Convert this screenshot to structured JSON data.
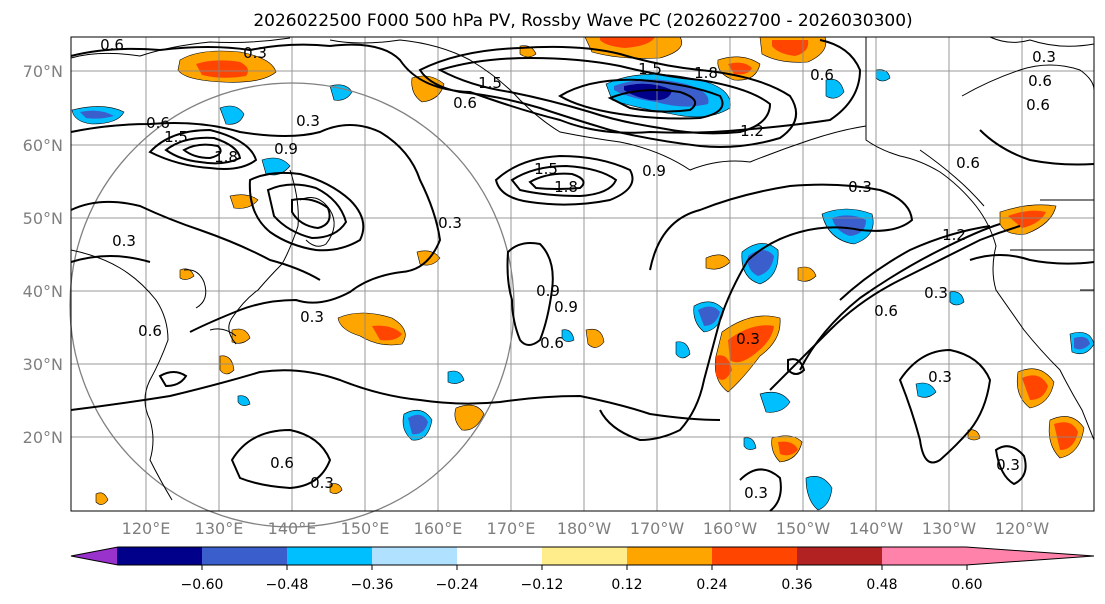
{
  "title": "2026022500 F000 500 hPa PV, Rossby Wave PC (2026022700 - 2026030300)",
  "lat_labels": [
    "70°N",
    "60°N",
    "50°N",
    "40°N",
    "30°N",
    "20°N"
  ],
  "lon_labels": [
    "120°E",
    "130°E",
    "140°E",
    "150°E",
    "160°E",
    "170°E",
    "180°W",
    "170°W",
    "160°W",
    "150°W",
    "140°W",
    "130°W",
    "120°W"
  ],
  "colorbar": {
    "colors": [
      "#9932cc",
      "#00008b",
      "#3a5fcd",
      "#00bfff",
      "#b0e2ff",
      "#ffffff",
      "#ffec8b",
      "#ffa500",
      "#ff4500",
      "#b22222",
      "#ff82ab"
    ],
    "tick_labels": [
      "−0.60",
      "−0.48",
      "−0.36",
      "−0.24",
      "−0.12",
      "0.12",
      "0.24",
      "0.36",
      "0.48",
      "0.60"
    ]
  },
  "contour_labels": [
    "0.6",
    "0.3",
    "1.5",
    "0.6",
    "0.6",
    "1.5",
    "1.8",
    "0.6",
    "1.2",
    "0.6",
    "1.5",
    "1.8",
    "0.3",
    "0.9",
    "0.9",
    "1.8",
    "1.5",
    "0.9",
    "0.3",
    "0.6",
    "0.3",
    "0.3",
    "0.9",
    "0.6",
    "0.3",
    "0.6",
    "0.3",
    "1.2",
    "0.6",
    "0.3",
    "0.6",
    "0.3",
    "0.3",
    "0.3",
    "0.3",
    "0.6",
    "0.3"
  ]
}
